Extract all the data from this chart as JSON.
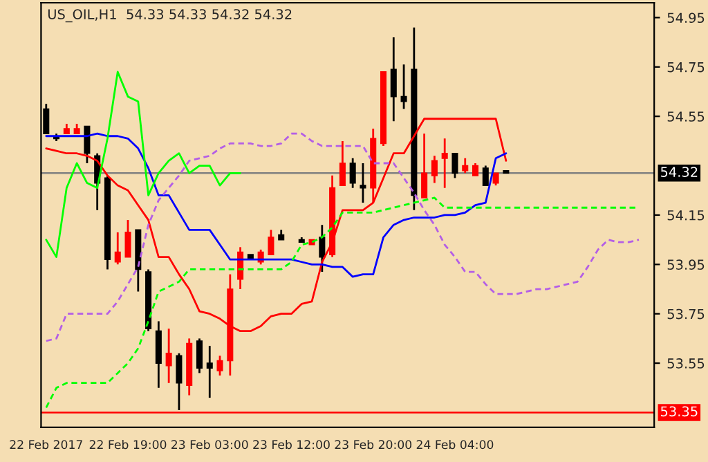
{
  "chart_data": {
    "type": "candlestick",
    "title": "US_OIL,H1  54.33 54.33 54.32 54.32",
    "categories": [
      "22 Feb 2017",
      null,
      null,
      null,
      null,
      null,
      null,
      null,
      "22 Feb 19:00",
      null,
      null,
      null,
      null,
      null,
      null,
      null,
      "23 Feb 03:00",
      null,
      null,
      null,
      null,
      null,
      null,
      null,
      "23 Feb 12:00",
      null,
      null,
      null,
      null,
      null,
      null,
      null,
      "23 Feb 20:00",
      null,
      null,
      null,
      null,
      null,
      null,
      null,
      "24 Feb 04:00",
      null,
      null,
      null,
      null,
      null,
      null,
      null,
      null,
      null,
      null,
      null,
      null,
      null,
      null,
      null,
      null,
      null,
      null,
      null
    ],
    "ohlc": [
      [
        54.58,
        54.6,
        54.48,
        54.48
      ],
      [
        54.47,
        54.48,
        54.45,
        54.46
      ],
      [
        54.48,
        54.52,
        54.48,
        54.5
      ],
      [
        54.48,
        54.52,
        54.48,
        54.5
      ],
      [
        54.51,
        54.51,
        54.36,
        54.4
      ],
      [
        54.39,
        54.4,
        54.17,
        54.28
      ],
      [
        54.3,
        54.31,
        53.93,
        53.97
      ],
      [
        53.96,
        54.08,
        53.95,
        54.0
      ],
      [
        53.98,
        54.13,
        53.98,
        54.08
      ],
      [
        54.09,
        54.09,
        53.84,
        53.93
      ],
      [
        53.92,
        53.93,
        53.68,
        53.69
      ],
      [
        53.68,
        53.72,
        53.45,
        53.55
      ],
      [
        53.54,
        53.69,
        53.47,
        53.59
      ],
      [
        53.58,
        53.59,
        53.36,
        53.47
      ],
      [
        53.46,
        53.65,
        53.42,
        53.63
      ],
      [
        53.64,
        53.65,
        53.51,
        53.53
      ],
      [
        53.55,
        53.62,
        53.41,
        53.53
      ],
      [
        53.52,
        53.58,
        53.5,
        53.56
      ],
      [
        53.56,
        53.91,
        53.5,
        53.85
      ],
      [
        53.89,
        54.02,
        53.85,
        54.0
      ],
      [
        53.99,
        53.99,
        53.97,
        53.97
      ],
      [
        53.96,
        54.01,
        53.95,
        54.0
      ],
      [
        53.99,
        54.09,
        53.99,
        54.06
      ],
      [
        54.07,
        54.09,
        54.05,
        54.05
      ],
      null,
      [
        54.05,
        54.06,
        54.04,
        54.04
      ],
      [
        54.03,
        54.05,
        54.03,
        54.05
      ],
      [
        54.06,
        54.11,
        53.92,
        53.98
      ],
      [
        53.99,
        54.31,
        53.98,
        54.26
      ],
      [
        54.27,
        54.45,
        54.27,
        54.36
      ],
      [
        54.36,
        54.38,
        54.26,
        54.28
      ],
      [
        54.27,
        54.36,
        54.2,
        54.26
      ],
      [
        54.26,
        54.5,
        54.2,
        54.46
      ],
      [
        54.44,
        54.73,
        54.43,
        54.73
      ],
      [
        54.74,
        54.87,
        54.53,
        54.63
      ],
      [
        54.63,
        54.76,
        54.58,
        54.61
      ],
      [
        54.74,
        54.91,
        54.17,
        54.23
      ],
      [
        54.22,
        54.48,
        54.22,
        54.32
      ],
      [
        54.31,
        54.39,
        54.28,
        54.37
      ],
      [
        54.38,
        54.46,
        54.26,
        54.4
      ],
      [
        54.4,
        54.4,
        54.3,
        54.32
      ],
      [
        54.33,
        54.38,
        54.32,
        54.35
      ],
      [
        54.31,
        54.36,
        54.31,
        54.35
      ],
      [
        54.34,
        54.35,
        54.27,
        54.27
      ],
      [
        54.28,
        54.32,
        54.27,
        54.32
      ],
      [
        54.33,
        54.33,
        54.32,
        54.32
      ],
      null,
      null,
      null,
      null,
      null,
      null,
      null,
      null,
      null,
      null,
      null,
      null,
      null,
      null
    ],
    "colors": [
      "#000000",
      "#000000",
      "#ff0000",
      "#ff0000",
      "#000000",
      "#000000",
      "#000000",
      "#ff0000",
      "#ff0000",
      "#000000",
      "#000000",
      "#000000",
      "#ff0000",
      "#000000",
      "#ff0000",
      "#000000",
      "#000000",
      "#ff0000",
      "#ff0000",
      "#ff0000",
      "#000000",
      "#ff0000",
      "#ff0000",
      "#000000",
      null,
      "#000000",
      "#ff0000",
      "#000000",
      "#ff0000",
      "#ff0000",
      "#000000",
      "#000000",
      "#ff0000",
      "#ff0000",
      "#000000",
      "#000000",
      "#000000",
      "#ff0000",
      "#ff0000",
      "#ff0000",
      "#000000",
      "#ff0000",
      "#ff0000",
      "#000000",
      "#ff0000",
      "#000000",
      null,
      null,
      null,
      null,
      null,
      null,
      null,
      null,
      null,
      null,
      null,
      null,
      null,
      null
    ],
    "series": [
      {
        "type": "line",
        "color": "#ff0000",
        "line_style": "solid",
        "values": [
          54.42,
          54.41,
          54.4,
          54.4,
          54.39,
          54.37,
          54.31,
          54.27,
          54.25,
          54.19,
          54.13,
          53.98,
          53.98,
          53.91,
          53.85,
          53.76,
          53.75,
          53.73,
          53.7,
          53.68,
          53.68,
          53.7,
          53.74,
          53.75,
          53.75,
          53.79,
          53.8,
          53.96,
          54.04,
          54.17,
          54.17,
          54.17,
          54.2,
          54.3,
          54.4,
          54.4,
          54.47,
          54.54,
          54.54,
          54.54,
          54.54,
          54.54,
          54.54,
          54.54,
          54.54,
          54.37,
          null,
          null,
          null,
          null,
          null,
          null,
          null,
          null,
          null,
          null,
          null,
          null,
          null,
          null
        ]
      },
      {
        "type": "line",
        "color": "#0000ff",
        "line_style": "solid",
        "values": [
          54.47,
          54.47,
          54.47,
          54.47,
          54.47,
          54.48,
          54.47,
          54.47,
          54.46,
          54.42,
          54.34,
          54.23,
          54.23,
          54.16,
          54.09,
          54.09,
          54.09,
          54.03,
          53.97,
          53.97,
          53.97,
          53.97,
          53.97,
          53.97,
          53.97,
          53.96,
          53.95,
          53.95,
          53.94,
          53.94,
          53.9,
          53.91,
          53.91,
          54.06,
          54.11,
          54.13,
          54.14,
          54.14,
          54.14,
          54.15,
          54.15,
          54.16,
          54.19,
          54.2,
          54.38,
          54.4,
          null,
          null,
          null,
          null,
          null,
          null,
          null,
          null,
          null,
          null,
          null,
          null,
          null,
          null
        ]
      },
      {
        "type": "line",
        "color": "#00ff00",
        "line_style": "solid",
        "values": [
          54.05,
          53.98,
          54.26,
          54.36,
          54.28,
          54.26,
          54.46,
          54.73,
          54.63,
          54.61,
          54.23,
          54.32,
          54.37,
          54.4,
          54.32,
          54.35,
          54.35,
          54.27,
          54.32,
          54.32,
          null,
          null,
          null,
          null,
          null,
          null,
          null,
          null,
          null,
          null,
          null,
          null,
          null,
          null,
          null,
          null,
          null,
          null,
          null,
          null,
          null,
          null,
          null,
          null,
          null,
          null,
          null,
          null,
          null,
          null,
          null,
          null,
          null,
          null,
          null,
          null,
          null,
          null,
          null,
          null
        ]
      },
      {
        "type": "line",
        "color": "#00ff00",
        "line_style": "dashed",
        "values": [
          53.37,
          53.45,
          53.47,
          53.47,
          53.47,
          53.47,
          53.47,
          53.51,
          53.55,
          53.61,
          53.72,
          53.84,
          53.86,
          53.88,
          53.93,
          53.93,
          53.93,
          53.93,
          53.93,
          53.93,
          53.93,
          53.93,
          53.93,
          53.93,
          53.96,
          54.03,
          54.04,
          54.06,
          54.1,
          54.16,
          54.16,
          54.16,
          54.16,
          54.17,
          54.18,
          54.19,
          54.2,
          54.21,
          54.22,
          54.18,
          54.18,
          54.18,
          54.18,
          54.18,
          54.18,
          54.18,
          54.18,
          54.18,
          54.18,
          54.18,
          54.18,
          54.18,
          54.18,
          54.18,
          54.18,
          54.18,
          54.18,
          54.18,
          54.18,
          null
        ]
      },
      {
        "type": "line",
        "color": "#b45ee6",
        "line_style": "dashed",
        "values": [
          53.64,
          53.65,
          53.75,
          53.75,
          53.75,
          53.75,
          53.75,
          53.8,
          53.87,
          53.94,
          54.11,
          54.21,
          54.26,
          54.31,
          54.37,
          54.38,
          54.39,
          54.42,
          54.44,
          54.44,
          54.44,
          54.43,
          54.43,
          54.44,
          54.48,
          54.48,
          54.45,
          54.43,
          54.43,
          54.43,
          54.43,
          54.43,
          54.36,
          54.36,
          54.36,
          54.3,
          54.24,
          54.17,
          54.11,
          54.03,
          53.98,
          53.92,
          53.92,
          53.87,
          53.83,
          53.83,
          53.83,
          53.84,
          53.85,
          53.85,
          53.86,
          53.87,
          53.88,
          53.94,
          54.01,
          54.05,
          54.04,
          54.04,
          54.05,
          null
        ]
      }
    ],
    "ref_lines": [
      {
        "axis": "y",
        "value": 54.32,
        "label": "54.32",
        "color": "#808080"
      },
      {
        "axis": "y",
        "value": 53.35,
        "label": "53.35",
        "color": "#ff0000"
      }
    ],
    "ylim": [
      53.29,
      55.01
    ],
    "yticks": [
      54.95,
      54.75,
      54.55,
      54.15,
      53.95,
      53.75,
      53.55
    ],
    "grid": false,
    "legend": false
  }
}
